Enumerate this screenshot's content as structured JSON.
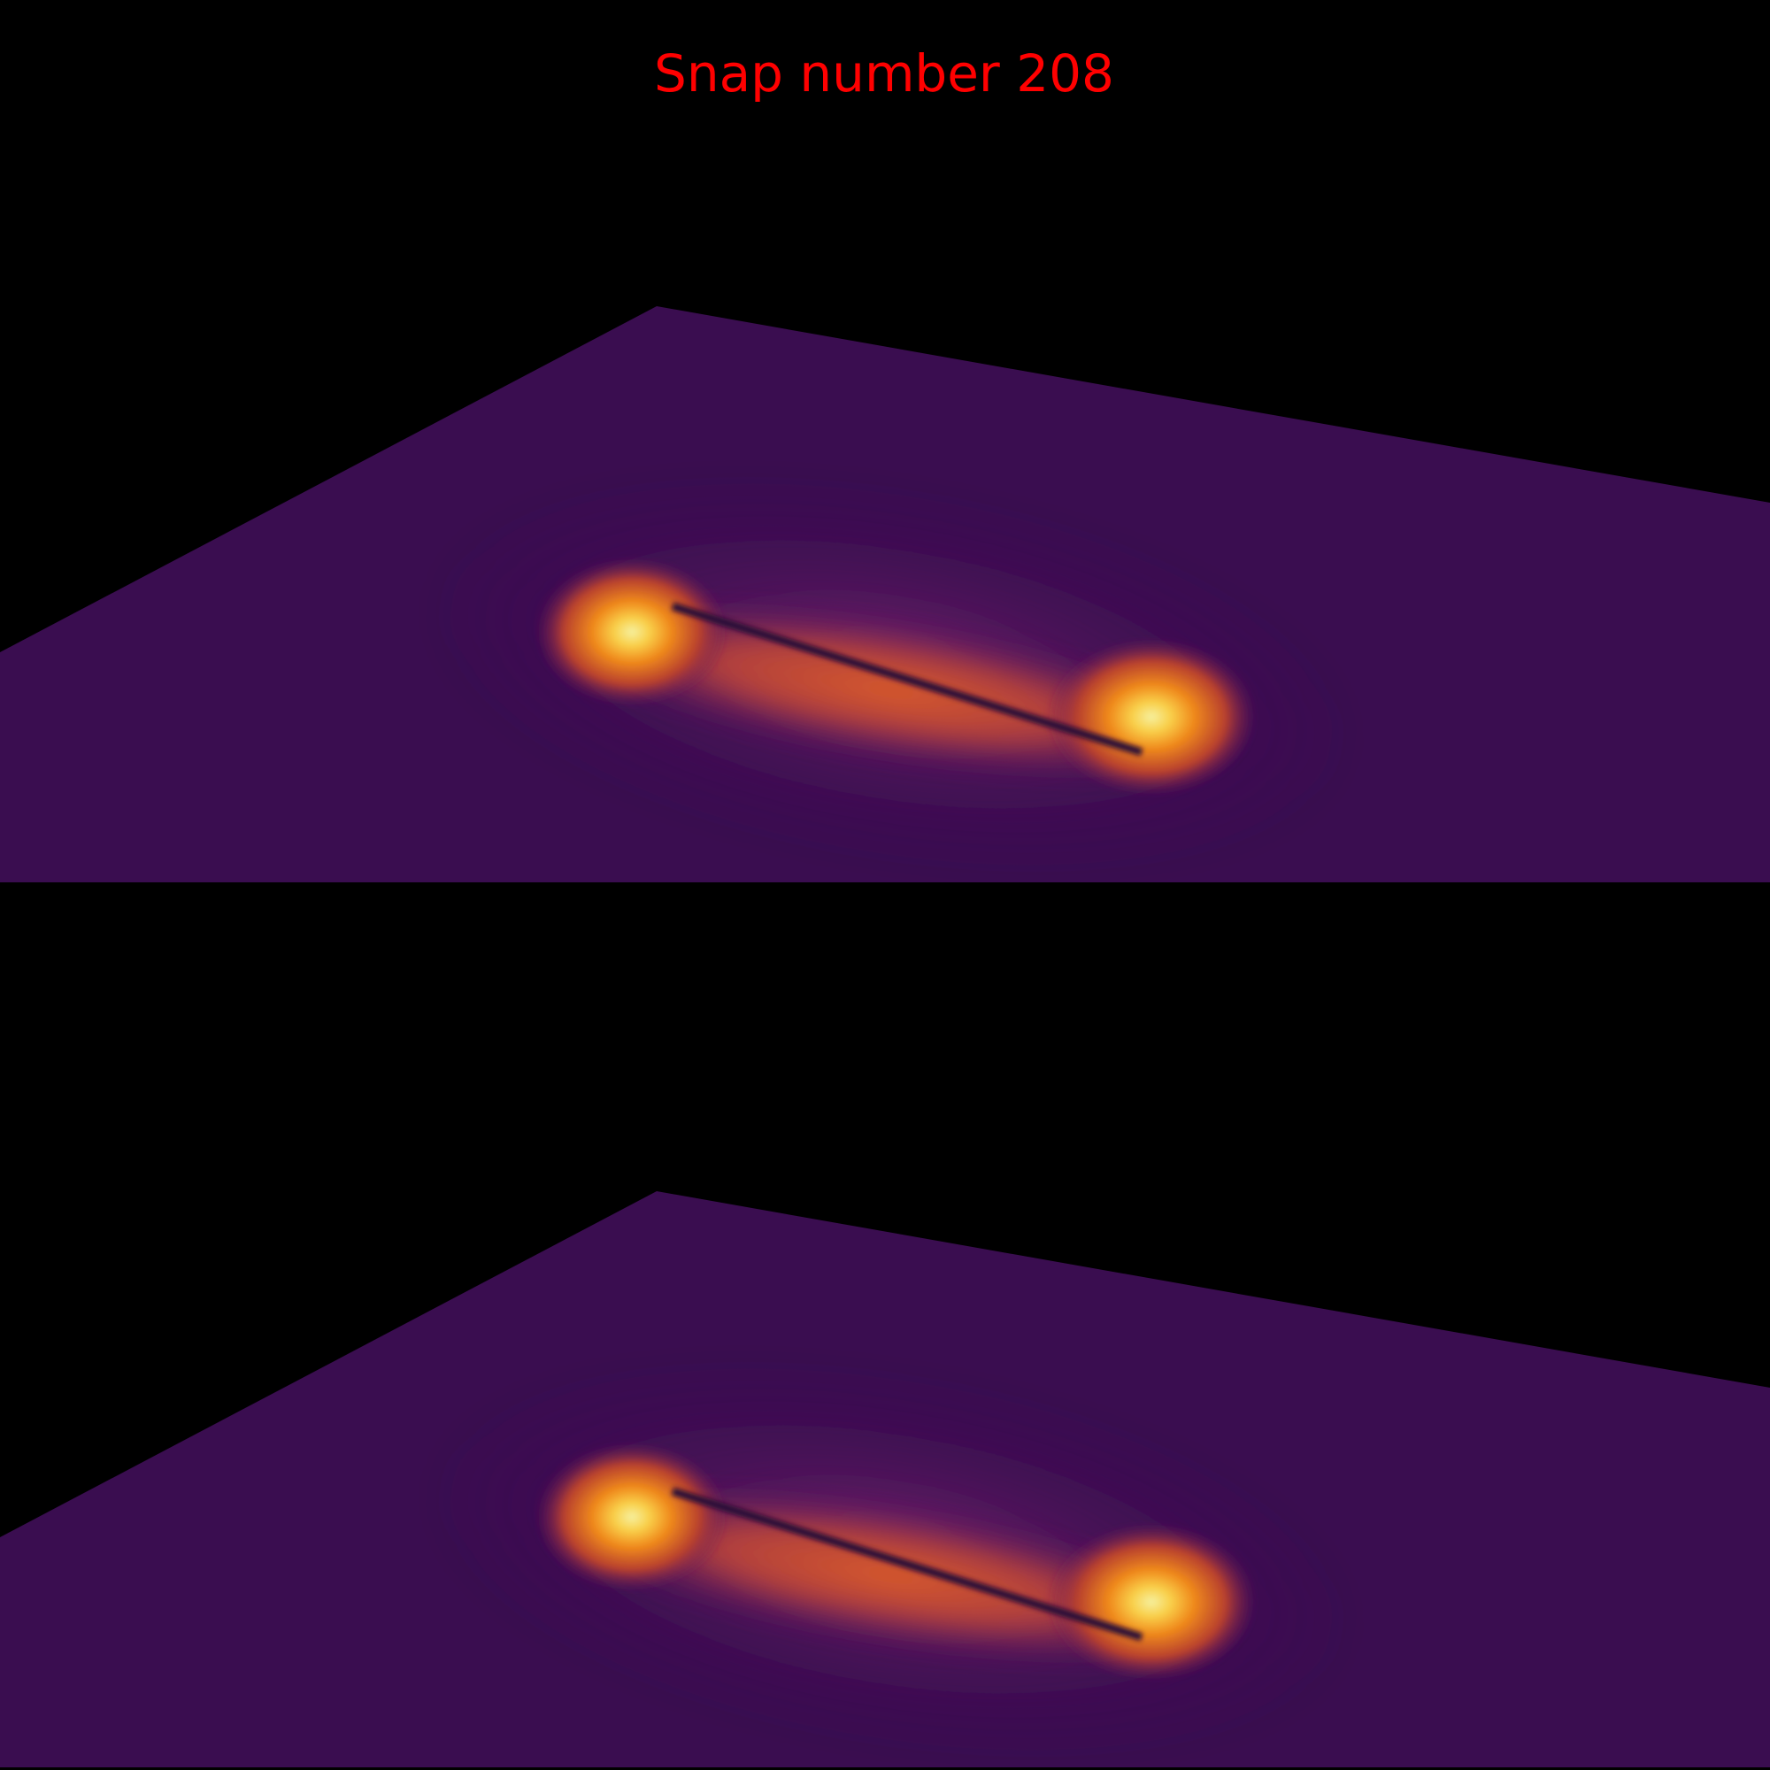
{
  "title": "Snap number 208"
}
